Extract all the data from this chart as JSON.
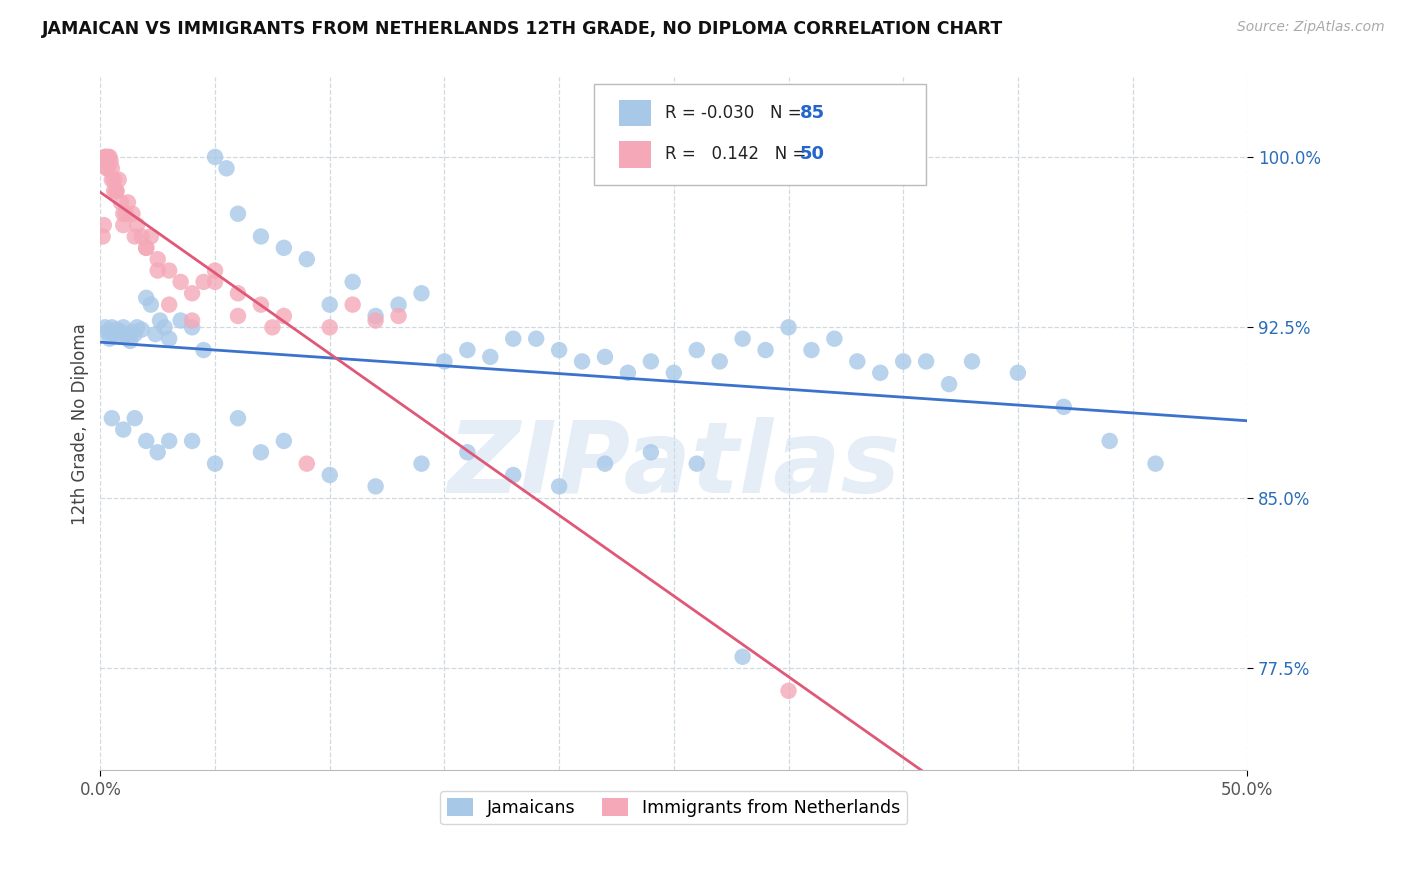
{
  "title": "JAMAICAN VS IMMIGRANTS FROM NETHERLANDS 12TH GRADE, NO DIPLOMA CORRELATION CHART",
  "source": "Source: ZipAtlas.com",
  "ylabel": "12th Grade, No Diploma",
  "yticks": [
    77.5,
    85.0,
    92.5,
    100.0
  ],
  "ytick_labels": [
    "77.5%",
    "85.0%",
    "92.5%",
    "100.0%"
  ],
  "xlim": [
    0.0,
    50.0
  ],
  "ylim": [
    73.0,
    103.5
  ],
  "blue_R": "-0.030",
  "blue_N": "85",
  "pink_R": "0.142",
  "pink_N": "50",
  "blue_color": "#a8c8e8",
  "pink_color": "#f4a8b8",
  "blue_line_color": "#3a72cc",
  "pink_line_color": "#e05878",
  "legend_label_blue": "Jamaicans",
  "legend_label_pink": "Immigrants from Netherlands",
  "watermark": "ZIPatlas",
  "background_color": "#ffffff",
  "grid_color": "#d0d8e0",
  "blue_x": [
    0.2,
    0.3,
    0.4,
    0.5,
    0.6,
    0.7,
    0.8,
    0.9,
    1.0,
    1.1,
    1.2,
    1.3,
    1.4,
    1.5,
    1.6,
    1.8,
    2.0,
    2.2,
    2.4,
    2.6,
    2.8,
    3.0,
    3.5,
    4.0,
    4.5,
    5.0,
    5.5,
    6.0,
    7.0,
    8.0,
    9.0,
    10.0,
    11.0,
    12.0,
    13.0,
    14.0,
    15.0,
    16.0,
    17.0,
    18.0,
    19.0,
    20.0,
    21.0,
    22.0,
    23.0,
    24.0,
    25.0,
    26.0,
    27.0,
    28.0,
    29.0,
    30.0,
    31.0,
    32.0,
    33.0,
    34.0,
    35.0,
    36.0,
    37.0,
    38.0,
    40.0,
    42.0,
    44.0,
    46.0,
    0.5,
    1.0,
    1.5,
    2.0,
    2.5,
    3.0,
    4.0,
    5.0,
    6.0,
    7.0,
    8.0,
    10.0,
    12.0,
    14.0,
    16.0,
    18.0,
    20.0,
    22.0,
    24.0,
    26.0,
    28.0
  ],
  "blue_y": [
    92.5,
    92.3,
    92.0,
    92.5,
    92.2,
    92.4,
    92.1,
    92.3,
    92.5,
    92.2,
    92.0,
    91.9,
    92.3,
    92.2,
    92.5,
    92.4,
    93.8,
    93.5,
    92.2,
    92.8,
    92.5,
    92.0,
    92.8,
    92.5,
    91.5,
    100.0,
    99.5,
    97.5,
    96.5,
    96.0,
    95.5,
    93.5,
    94.5,
    93.0,
    93.5,
    94.0,
    91.0,
    91.5,
    91.2,
    92.0,
    92.0,
    91.5,
    91.0,
    91.2,
    90.5,
    91.0,
    90.5,
    91.5,
    91.0,
    92.0,
    91.5,
    92.5,
    91.5,
    92.0,
    91.0,
    90.5,
    91.0,
    91.0,
    90.0,
    91.0,
    90.5,
    89.0,
    87.5,
    86.5,
    88.5,
    88.0,
    88.5,
    87.5,
    87.0,
    87.5,
    87.5,
    86.5,
    88.5,
    87.0,
    87.5,
    86.0,
    85.5,
    86.5,
    87.0,
    86.0,
    85.5,
    86.5,
    87.0,
    86.5,
    78.0
  ],
  "pink_x": [
    0.1,
    0.15,
    0.2,
    0.25,
    0.3,
    0.35,
    0.4,
    0.45,
    0.5,
    0.6,
    0.7,
    0.8,
    0.9,
    1.0,
    1.2,
    1.4,
    1.6,
    1.8,
    2.0,
    2.5,
    3.0,
    3.5,
    4.0,
    4.5,
    5.0,
    6.0,
    7.0,
    8.0,
    10.0,
    12.0,
    0.3,
    0.5,
    0.7,
    1.0,
    1.5,
    2.0,
    2.5,
    3.0,
    4.0,
    5.0,
    6.0,
    7.5,
    9.0,
    11.0,
    13.0,
    0.2,
    0.6,
    1.1,
    2.2,
    30.0
  ],
  "pink_y": [
    96.5,
    97.0,
    100.0,
    100.0,
    99.5,
    100.0,
    100.0,
    99.8,
    99.5,
    99.0,
    98.5,
    99.0,
    98.0,
    97.5,
    98.0,
    97.5,
    97.0,
    96.5,
    96.0,
    95.5,
    95.0,
    94.5,
    94.0,
    94.5,
    95.0,
    94.0,
    93.5,
    93.0,
    92.5,
    92.8,
    99.5,
    99.0,
    98.5,
    97.0,
    96.5,
    96.0,
    95.0,
    93.5,
    92.8,
    94.5,
    93.0,
    92.5,
    86.5,
    93.5,
    93.0,
    100.0,
    98.5,
    97.5,
    96.5,
    76.5
  ]
}
